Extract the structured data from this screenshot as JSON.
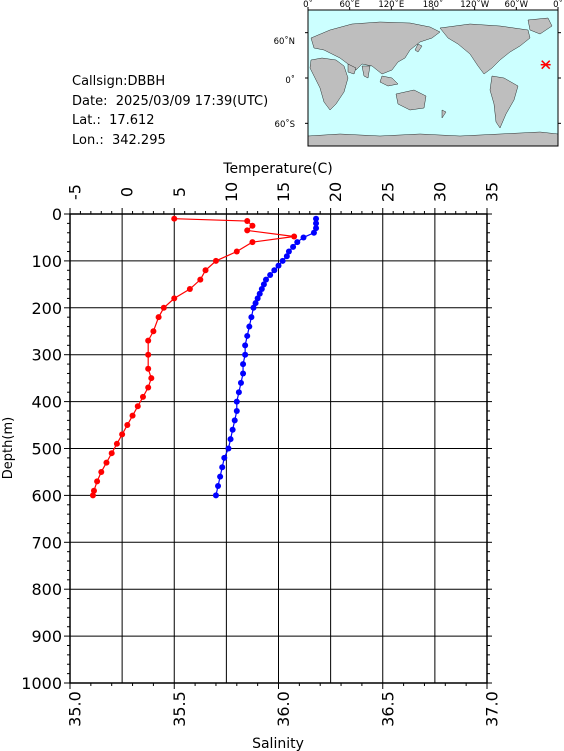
{
  "info": {
    "callsign": "Callsign:DBBH",
    "date": "Date:  2025/03/09 17:39(UTC)",
    "lat": "Lat.:  17.612",
    "lon": "Lon.:  342.295"
  },
  "map": {
    "lon_labels": [
      "0˚",
      "60˚E",
      "120˚E",
      "180˚",
      "120˚W",
      "60˚W",
      "0˚"
    ],
    "lat_labels": [
      "60˚N",
      "0˚",
      "60˚S"
    ],
    "marker": {
      "lat": 17.612,
      "lon": 342.295
    },
    "colors": {
      "ocean": "#ccffff",
      "land": "#bebebe",
      "marker": "#ff0000"
    }
  },
  "chart_data": {
    "type": "line",
    "title": "",
    "x_top_label": "Temperature(C)",
    "x_bottom_label": "Salinity",
    "ylabel": "Depth(m)",
    "temp_range": [
      -5,
      35
    ],
    "sal_range": [
      35.0,
      37.0
    ],
    "depth_range": [
      0,
      1000
    ],
    "temp_ticks": [
      "-5",
      "0",
      "5",
      "10",
      "15",
      "20",
      "25",
      "30",
      "35"
    ],
    "sal_ticks": [
      "35.0",
      "35.5",
      "36.0",
      "36.5",
      "37.0"
    ],
    "depth_ticks": [
      "0",
      "100",
      "200",
      "300",
      "400",
      "500",
      "600",
      "700",
      "800",
      "900",
      "1000"
    ],
    "grid": true,
    "colors": {
      "temperature": "#ff0000",
      "salinity": "#0000ff"
    },
    "series": [
      {
        "axis": "salinity",
        "points": [
          [
            36.18,
            10
          ],
          [
            36.18,
            20
          ],
          [
            36.18,
            30
          ],
          [
            36.17,
            40
          ],
          [
            36.12,
            50
          ],
          [
            36.09,
            60
          ],
          [
            36.07,
            70
          ],
          [
            36.05,
            80
          ],
          [
            36.04,
            90
          ],
          [
            36.02,
            100
          ],
          [
            36.0,
            110
          ],
          [
            35.98,
            120
          ],
          [
            35.96,
            130
          ],
          [
            35.94,
            140
          ],
          [
            35.93,
            150
          ],
          [
            35.92,
            160
          ],
          [
            35.91,
            170
          ],
          [
            35.9,
            180
          ],
          [
            35.89,
            190
          ],
          [
            35.88,
            200
          ],
          [
            35.87,
            220
          ],
          [
            35.86,
            240
          ],
          [
            35.85,
            260
          ],
          [
            35.84,
            280
          ],
          [
            35.84,
            300
          ],
          [
            35.83,
            320
          ],
          [
            35.83,
            340
          ],
          [
            35.82,
            360
          ],
          [
            35.81,
            380
          ],
          [
            35.8,
            400
          ],
          [
            35.8,
            420
          ],
          [
            35.79,
            440
          ],
          [
            35.78,
            460
          ],
          [
            35.77,
            480
          ],
          [
            35.76,
            500
          ],
          [
            35.74,
            520
          ],
          [
            35.73,
            540
          ],
          [
            35.72,
            560
          ],
          [
            35.71,
            580
          ],
          [
            35.7,
            600
          ]
        ]
      },
      {
        "axis": "temperature",
        "points": [
          [
            5.0,
            10
          ],
          [
            12.0,
            15
          ],
          [
            12.5,
            25
          ],
          [
            12.0,
            35
          ],
          [
            16.5,
            48
          ],
          [
            12.5,
            60
          ],
          [
            11.0,
            80
          ],
          [
            9.0,
            100
          ],
          [
            8.0,
            120
          ],
          [
            7.5,
            140
          ],
          [
            6.5,
            160
          ],
          [
            5.0,
            180
          ],
          [
            4.0,
            200
          ],
          [
            3.5,
            220
          ],
          [
            3.0,
            250
          ],
          [
            2.5,
            270
          ],
          [
            2.5,
            300
          ],
          [
            2.5,
            330
          ],
          [
            2.8,
            350
          ],
          [
            2.5,
            370
          ],
          [
            2.0,
            390
          ],
          [
            1.5,
            410
          ],
          [
            1.0,
            430
          ],
          [
            0.5,
            450
          ],
          [
            0.0,
            470
          ],
          [
            -0.5,
            490
          ],
          [
            -1.0,
            510
          ],
          [
            -1.5,
            530
          ],
          [
            -2.0,
            550
          ],
          [
            -2.4,
            570
          ],
          [
            -2.7,
            590
          ],
          [
            -2.8,
            600
          ]
        ]
      }
    ]
  }
}
